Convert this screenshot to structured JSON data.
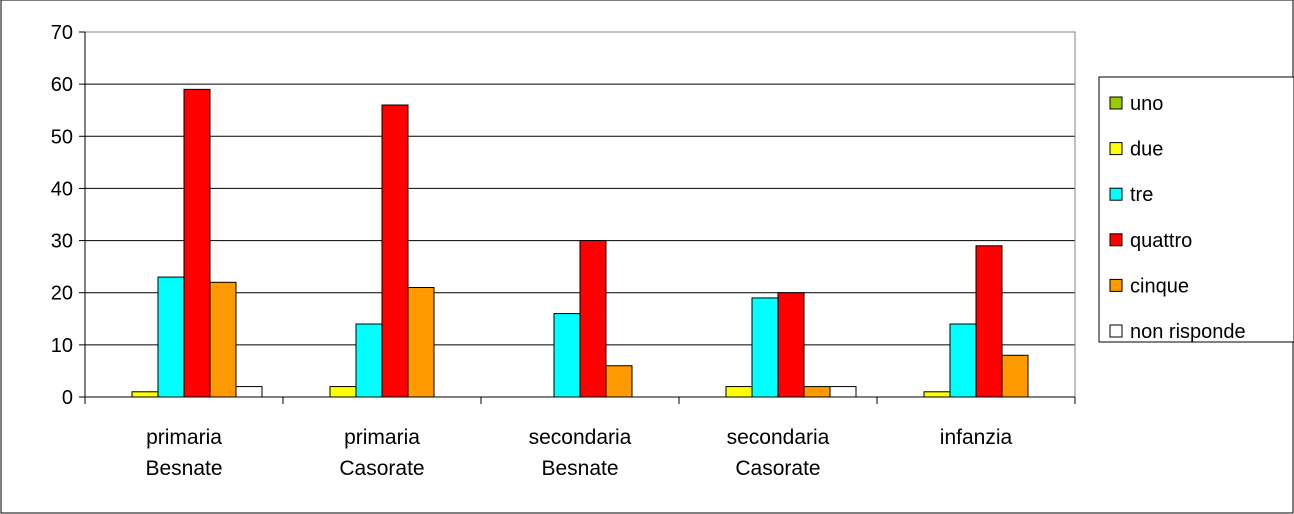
{
  "chart_data": {
    "type": "bar",
    "categories": [
      [
        "primaria",
        "Besnate"
      ],
      [
        "primaria",
        "Casorate"
      ],
      [
        "secondaria",
        "Besnate"
      ],
      [
        "secondaria",
        "Casorate"
      ],
      [
        "infanzia"
      ]
    ],
    "series": [
      {
        "name": "uno",
        "color": "#99cc00",
        "values": [
          0,
          0,
          0,
          0,
          0
        ]
      },
      {
        "name": "due",
        "color": "#ffff00",
        "values": [
          1,
          2,
          0,
          2,
          1
        ]
      },
      {
        "name": "tre",
        "color": "#00ffff",
        "values": [
          23,
          14,
          16,
          19,
          14
        ]
      },
      {
        "name": "quattro",
        "color": "#ff0000",
        "values": [
          59,
          56,
          30,
          20,
          29
        ]
      },
      {
        "name": "cinque",
        "color": "#ff9900",
        "values": [
          22,
          21,
          6,
          2,
          8
        ]
      },
      {
        "name": "non risponde",
        "color": "#ffffff",
        "values": [
          2,
          0,
          0,
          2,
          0
        ]
      }
    ],
    "ylim": [
      0,
      70
    ],
    "yticks": [
      "0",
      "10",
      "20",
      "30",
      "40",
      "50",
      "60",
      "70"
    ],
    "grid": true,
    "legend": "right"
  }
}
